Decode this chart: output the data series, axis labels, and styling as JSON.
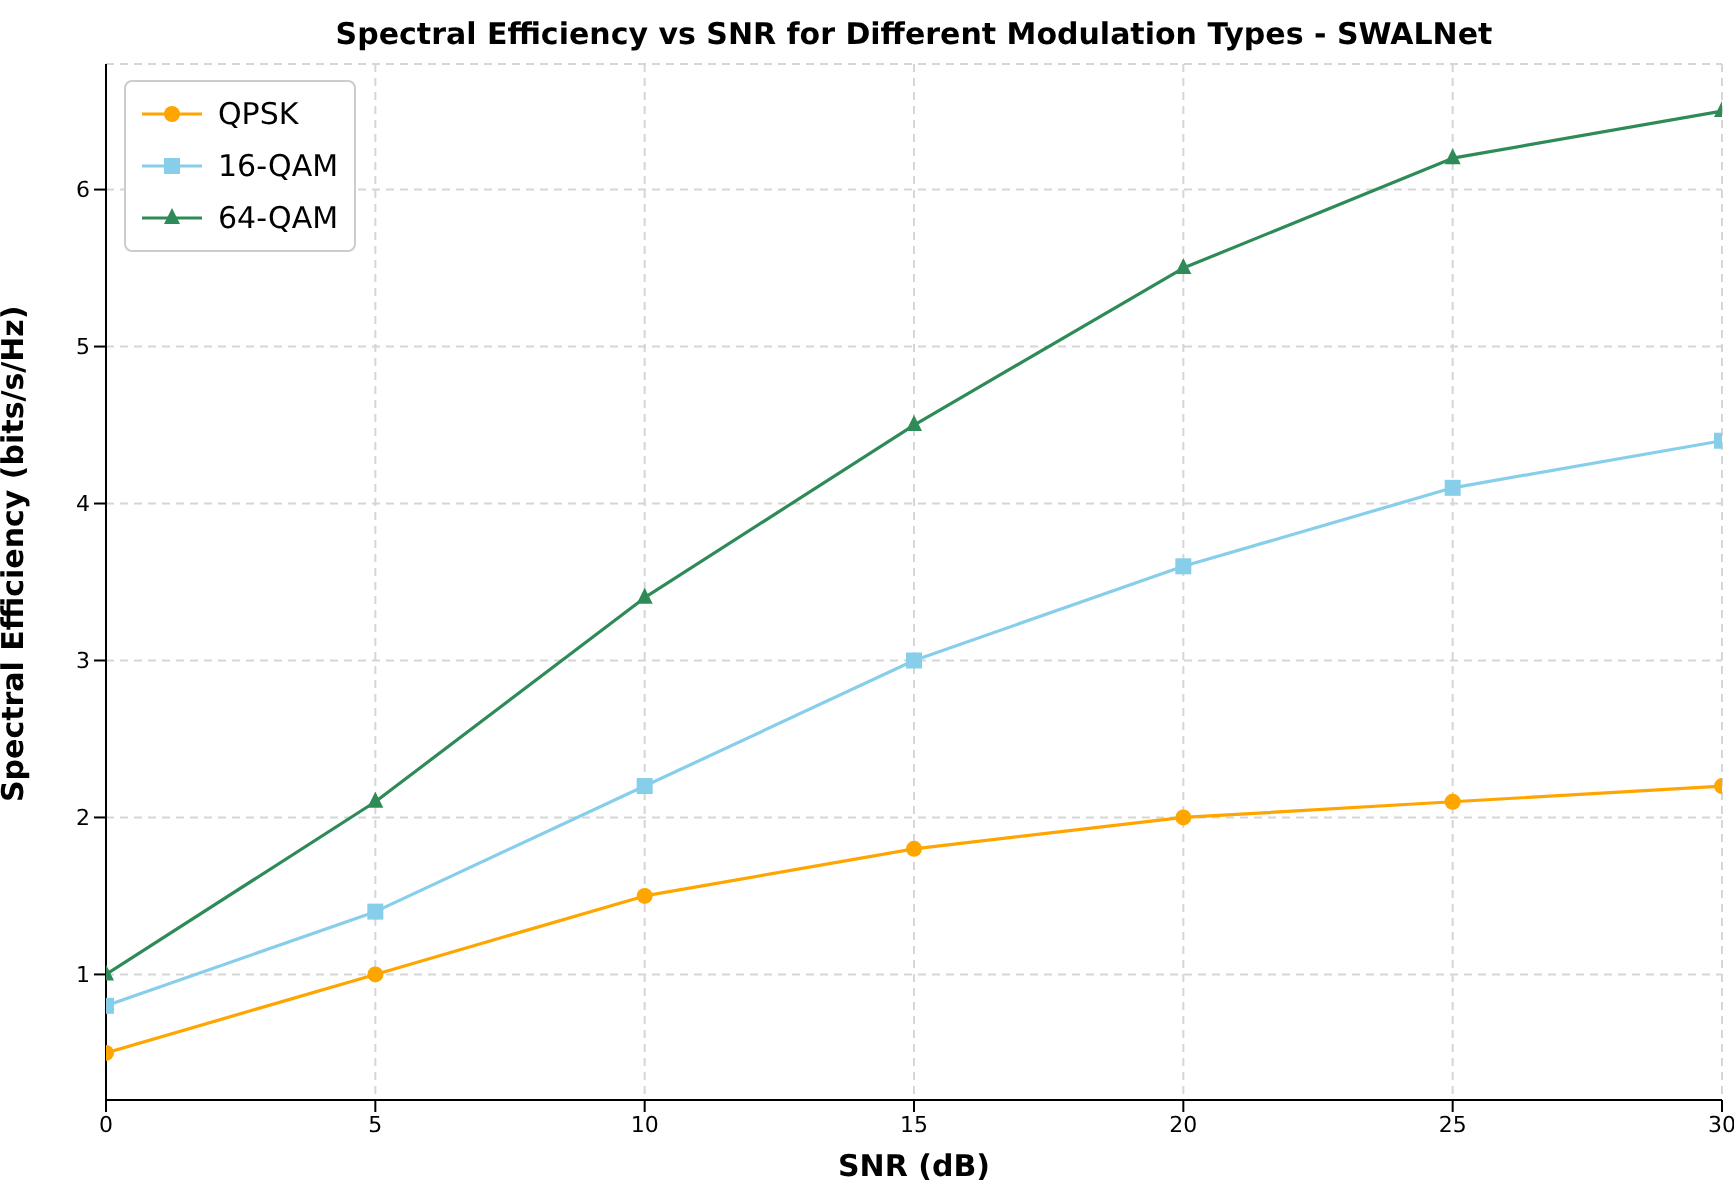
{
  "chart_data": {
    "type": "line",
    "title": "Spectral Efficiency vs SNR for Different Modulation Types - SWALNet",
    "xlabel": "SNR (dB)",
    "ylabel": "Spectral Efficiency (bits/s/Hz)",
    "x": [
      0,
      5,
      10,
      15,
      20,
      25,
      30
    ],
    "series": [
      {
        "name": "QPSK",
        "color": "#ffa500",
        "marker": "circle",
        "values": [
          0.5,
          1,
          1.5,
          1.8,
          2,
          2.1,
          2.2
        ]
      },
      {
        "name": "16-QAM",
        "color": "#87ceeb",
        "marker": "square",
        "values": [
          0.8,
          1.4,
          2.2,
          3,
          3.6,
          4.1,
          4.4
        ]
      },
      {
        "name": "64-QAM",
        "color": "#2e8b57",
        "marker": "triangle",
        "values": [
          1,
          2.1,
          3.4,
          4.5,
          5.5,
          6.2,
          6.5
        ]
      }
    ],
    "xlim": [
      0,
      30
    ],
    "xticks": [
      0,
      5,
      10,
      15,
      20,
      25,
      30
    ],
    "ylim": [
      0.2,
      6.8
    ],
    "yticks": [
      1,
      2,
      3,
      4,
      5,
      6
    ],
    "grid": true,
    "legend": "top left",
    "line_style": "solid"
  }
}
